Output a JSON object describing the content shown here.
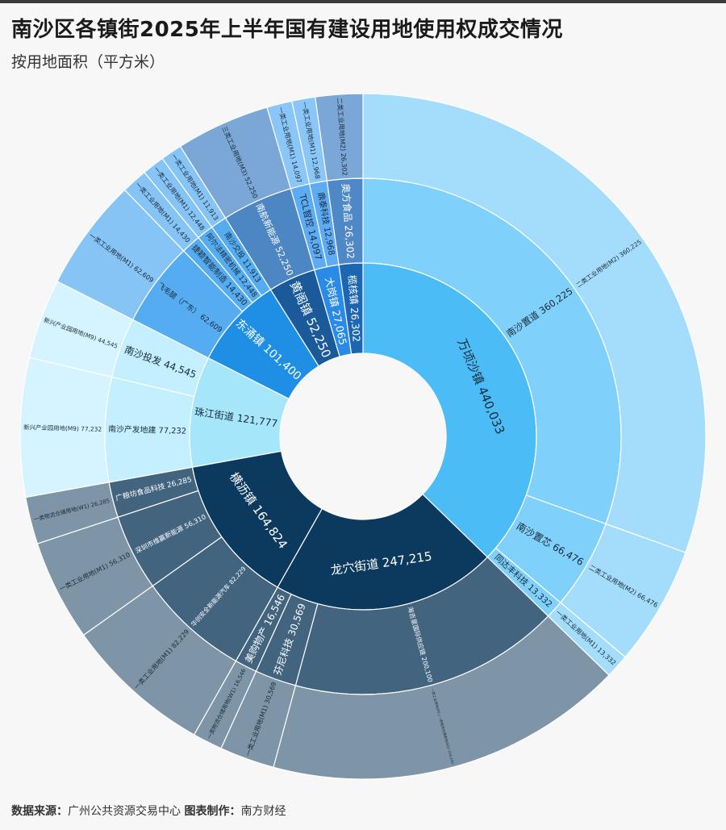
{
  "header": {
    "title": "南沙区各镇街2025年上半年国有建设用地使用权成交情况",
    "subtitle": "按用地面积（平方米）"
  },
  "footer": {
    "source_label": "数据来源：",
    "source_value": "广州公共资源交易中心",
    "maker_label": "图表制作：",
    "maker_value": "南方财经"
  },
  "chart_data": {
    "type": "sunburst",
    "unit": "平方米",
    "levels": [
      "镇街",
      "受让方",
      "土地用途"
    ],
    "data": [
      {
        "name": "万顷沙镇",
        "value": 440033,
        "color": "#4bbcf5",
        "children": [
          {
            "name": "南沙置道",
            "value": 360225,
            "color": "#7fd0fa",
            "children": [
              {
                "name": "二类工业用地(M2)",
                "value": 360225,
                "color": "#a4ddfb"
              }
            ]
          },
          {
            "name": "南沙置芯",
            "value": 66476,
            "color": "#7fd0fa",
            "children": [
              {
                "name": "二类工业用地(M2)",
                "value": 66476,
                "color": "#a4ddfb"
              }
            ]
          },
          {
            "name": "同达丰科技",
            "value": 13332,
            "color": "#7fd0fa",
            "children": [
              {
                "name": "一类工业用地(M1)",
                "value": 13332,
                "color": "#a4ddfb"
              }
            ]
          }
        ]
      },
      {
        "name": "龙穴街道",
        "value": 247215,
        "color": "#0c3a5e",
        "children": [
          {
            "name": "海吉星国际供应链",
            "value": 200100,
            "color": "#43647f",
            "children": [
              {
                "name": "一类工业用地(M1),一类物流仓储用地(W1)",
                "value": 200100,
                "color": "#7d95a7"
              }
            ]
          },
          {
            "name": "芬尼科技",
            "value": 30569,
            "color": "#43647f",
            "children": [
              {
                "name": "一类工业用地(M1)",
                "value": 30569,
                "color": "#7d95a7"
              }
            ]
          },
          {
            "name": "美购物产",
            "value": 16546,
            "color": "#43647f",
            "children": [
              {
                "name": "一类物流仓储用地(W1)",
                "value": 16546,
                "color": "#7d95a7"
              }
            ]
          }
        ]
      },
      {
        "name": "横沥镇",
        "value": 164824,
        "color": "#0c3a5e",
        "children": [
          {
            "name": "华创安全新能源汽车",
            "value": 82229,
            "color": "#43647f",
            "children": [
              {
                "name": "一类工业用地(M1)",
                "value": 82229,
                "color": "#7d95a7"
              }
            ]
          },
          {
            "name": "深圳市维赢新能源",
            "value": 56310,
            "color": "#43647f",
            "children": [
              {
                "name": "一类工业用地(M1)",
                "value": 56310,
                "color": "#7d95a7"
              }
            ]
          },
          {
            "name": "广粮坊食品科技",
            "value": 26285,
            "color": "#43647f",
            "children": [
              {
                "name": "一类物流仓储用地(W1)",
                "value": 26285,
                "color": "#7d95a7"
              }
            ]
          }
        ]
      },
      {
        "name": "珠江街道",
        "value": 121777,
        "color": "#a6e6fb",
        "children": [
          {
            "name": "南沙产发地建",
            "value": 77232,
            "color": "#c3efff",
            "children": [
              {
                "name": "新兴产业园用地(M9)",
                "value": 77232,
                "color": "#d6f4ff"
              }
            ]
          },
          {
            "name": "南沙投发",
            "value": 44545,
            "color": "#c3efff",
            "children": [
              {
                "name": "新兴产业园用地(M9)",
                "value": 44545,
                "color": "#d6f4ff"
              }
            ]
          }
        ]
      },
      {
        "name": "东涌镇",
        "value": 101400,
        "color": "#1f8fe6",
        "children": [
          {
            "name": "飞毛腿（广东）",
            "value": 62609,
            "color": "#56acf0",
            "children": [
              {
                "name": "一类工业用地(M1)",
                "value": 62609,
                "color": "#86c4f5"
              }
            ]
          },
          {
            "name": "捷颖智能制造",
            "value": 14430,
            "color": "#56acf0",
            "children": [
              {
                "name": "一类工业用地(M1)",
                "value": 14430,
                "color": "#86c4f5"
              }
            ]
          },
          {
            "name": "阿尔法精密机械",
            "value": 12448,
            "color": "#56acf0",
            "children": [
              {
                "name": "一类工业用地(M1)",
                "value": 12448,
                "color": "#86c4f5"
              }
            ]
          },
          {
            "name": "南沙交投",
            "value": 11913,
            "color": "#56acf0",
            "children": [
              {
                "name": "一类工业用地(M1)",
                "value": 11913,
                "color": "#86c4f5"
              }
            ]
          }
        ]
      },
      {
        "name": "黄阁镇",
        "value": 52250,
        "color": "#1a5a9a",
        "children": [
          {
            "name": "南航新能源",
            "value": 52250,
            "color": "#4c86c3",
            "children": [
              {
                "name": "三类工业用地(M3)",
                "value": 52250,
                "color": "#7aa7d6"
              }
            ]
          }
        ]
      },
      {
        "name": "大岗镇",
        "value": 27065,
        "color": "#2a8ae8",
        "children": [
          {
            "name": "TCL智控",
            "value": 14097,
            "color": "#5cabf3",
            "children": [
              {
                "name": "一类工业用地(M1)",
                "value": 14097,
                "color": "#8ac6f7"
              }
            ]
          },
          {
            "name": "鼎泰科技",
            "value": 12968,
            "color": "#5cabf3",
            "children": [
              {
                "name": "一类工业用地(M1)",
                "value": 12968,
                "color": "#8ac6f7"
              }
            ]
          }
        ]
      },
      {
        "name": "榄核镇",
        "value": 26302,
        "color": "#1d66b1",
        "children": [
          {
            "name": "奥方食品",
            "value": 26302,
            "color": "#4f88c6",
            "children": [
              {
                "name": "二类工业用地(M2)",
                "value": 26302,
                "color": "#7aa7d6"
              }
            ]
          }
        ]
      }
    ],
    "segment_label_text": {
      "万顷沙镇": "万顷沙镇 440,033",
      "南沙置道": "南沙置道 360,225",
      "万顷沙镇/南沙置道/二类工业用地(M2)": "二类工业用地(M2) 360,225",
      "南沙置芯": "南沙置芯 66,476",
      "万顷沙镇/南沙置芯/二类工业用地(M2)": "二类工业用地(M2) 66,476",
      "同达丰科技": "同达丰科技 13,332",
      "万顷沙镇/同达丰科技/一类工业用地(M1)": "一类工业用地(M1) 13,332",
      "龙穴街道": "龙穴街道 247,215",
      "海吉星国际供应链": "海吉星国际供应链 200,100",
      "龙穴街道/海吉星国际供应链/一类工业用地(M1),一类物流仓储用地(W1)": "一类工业用地(M1),一类物流仓储用地(W1) 200,100",
      "芬尼科技": "芬尼科技 30,569",
      "龙穴街道/芬尼科技/一类工业用地(M1)": "一类工业用地(M1) 30,569",
      "美购物产": "美购物产 16,546",
      "龙穴街道/美购物产/一类物流仓储用地(W1)": "一类物流仓储用地(W1) 16,546",
      "横沥镇": "横沥镇 164,824",
      "华创安全新能源汽车": "华创安全新能源汽车 82,229",
      "横沥镇/华创安全新能源汽车/一类工业用地(M1)": "一类工业用地(M1) 82,229",
      "深圳市维赢新能源": "深圳市维赢新能源 56,310",
      "横沥镇/深圳市维赢新能源/一类工业用地(M1)": "一类工业用地(M1) 56,310",
      "广粮坊食品科技": "广粮坊食品科技 26,285",
      "横沥镇/广粮坊食品科技/一类物流仓储用地(W1)": "一类物流仓储用地(W1) 26,285",
      "珠江街道": "珠江街道 121,777",
      "南沙产发地建": "南沙产发地建 77,232",
      "珠江街道/南沙产发地建/新兴产业园用地(M9)": "新兴产业园用地(M9) 77,232",
      "南沙投发": "南沙投发 44,545",
      "珠江街道/南沙投发/新兴产业园用地(M9)": "新兴产业园用地(M9) 44,545",
      "东涌镇": "东涌镇 101,400",
      "飞毛腿（广东）": "飞毛腿（广东） 62,609",
      "东涌镇/飞毛腿（广东）/一类工业用地(M1)": "一类工业用地(M1) 62,609",
      "捷颖智能制造": "捷颖智能制造 14,430",
      "东涌镇/捷颖智能制造/一类工业用地(M1)": "一类工业用地(M1) 14,430",
      "阿尔法精密机械": "阿尔法精密机械 12,448",
      "东涌镇/阿尔法精密机械/一类工业用地(M1)": "一类工业用地(M1) 12,448",
      "南沙交投": "南沙交投 11,913",
      "东涌镇/南沙交投/一类工业用地(M1)": "一类工业用地(M1) 11,913",
      "黄阁镇": "黄阁镇 52,250",
      "南航新能源": "南航新能源 52,250",
      "黄阁镇/南航新能源/三类工业用地(M3)": "三类工业用地(M3) 52,250",
      "大岗镇": "大岗镇 27,065",
      "TCL智控": "TCL智控 14,097",
      "大岗镇/TCL智控/一类工业用地(M1)": "一类工业用地(M1) 14,097",
      "鼎泰科技": "鼎泰科技 12,968",
      "大岗镇/鼎泰科技/一类工业用地(M1)": "一类工业用地(M1) 12,968",
      "榄核镇": "榄核镇 26,302",
      "奥方食品": "奥方食品 26,302",
      "榄核镇/奥方食品/二类工业用地(M2)": "二类工业用地(M2) 26,302"
    }
  }
}
